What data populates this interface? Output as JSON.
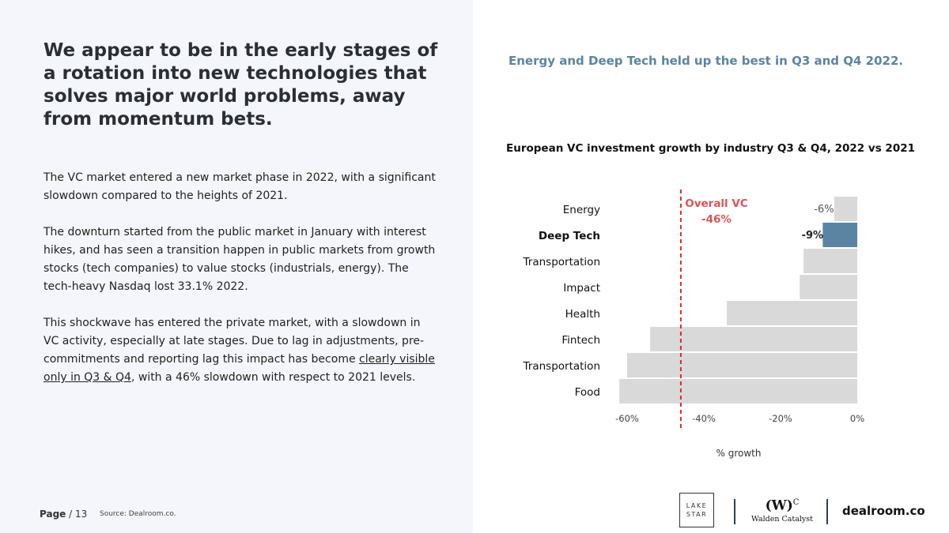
{
  "left": {
    "headline": "We appear to be in the early stages of a rotation into new technologies that solves major world problems, away from momentum bets.",
    "para1": "The VC market entered a new market phase in 2022, with a significant slowdown compared to the heights of 2021.",
    "para2": "The downturn started from the public market in January with interest hikes, and has seen a transition happen in public markets from growth stocks (tech companies) to value stocks (industrials, energy). The tech-heavy Nasdaq lost 33.1% 2022.",
    "para3_start": "This shockwave has entered the private market, with a slowdown in VC activity, especially at late stages. Due to lag in adjustments, pre-commitments and reporting lag this impact has become ",
    "para3_link": "clearly visible only in Q3 & Q4",
    "para3_end": ", with a 46% slowdown with respect to 2021 levels."
  },
  "footer": {
    "page_label": "Page",
    "page_number": "/ 13",
    "source": "Source: Dealroom.co."
  },
  "right": {
    "insight": "Energy and Deep Tech held up the best in Q3 and Q4 2022."
  },
  "chart_data": {
    "type": "bar",
    "orientation": "horizontal",
    "title": "European VC investment growth by industry Q3 & Q4, 2022 vs 2021",
    "xlabel": "% growth",
    "ylabel": "",
    "xlim": [
      -62,
      0
    ],
    "xticks": [
      -60,
      -40,
      -20,
      0
    ],
    "xtick_labels": [
      "-60%",
      "-40%",
      "-20%",
      "0%"
    ],
    "categories": [
      "Energy",
      "Deep Tech",
      "Transportation",
      "Impact",
      "Health",
      "Fintech",
      "Transportation",
      "Food"
    ],
    "values": [
      -6,
      -9,
      -14,
      -15,
      -34,
      -54,
      -60,
      -62
    ],
    "highlight": "Deep Tech",
    "data_labels": [
      "-6%",
      "-9%",
      "",
      "",
      "",
      "",
      "",
      ""
    ],
    "reference_line": {
      "value": -46,
      "label_line1": "Overall VC",
      "label_line2": "-46%"
    },
    "colors": {
      "bar": "#d9d9d9",
      "highlight": "#5b84a3",
      "reference": "#d62b2b",
      "reference_text": "#d9545a"
    },
    "grid": false,
    "legend": "none"
  },
  "logos": {
    "lakestar_line1": "LAKE",
    "lakestar_line2": "STAR",
    "walden_mark": "(W)",
    "walden_sup": "C",
    "walden_name": "Walden Catalyst",
    "dealroom": "dealroom.co"
  }
}
